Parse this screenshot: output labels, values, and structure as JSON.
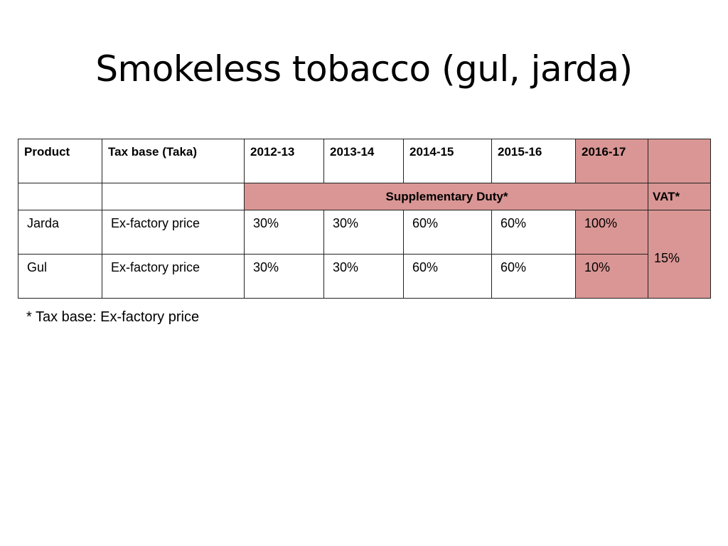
{
  "title": "Smokeless tobacco (gul, jarda)",
  "table": {
    "headers": [
      "Product",
      "Tax base (Taka)",
      "2012-13",
      "2013-14",
      "2014-15",
      "2015-16",
      "2016-17",
      ""
    ],
    "group_labels": {
      "supplementary_duty": "Supplementary Duty*",
      "vat": "VAT*"
    },
    "rows": [
      {
        "product": "Jarda",
        "tax_base": "Ex-factory price",
        "values": [
          "30%",
          "30%",
          "60%",
          "60%",
          "100%"
        ]
      },
      {
        "product": "Gul",
        "tax_base": "Ex-factory price",
        "values": [
          "30%",
          "30%",
          "60%",
          "60%",
          "10%"
        ]
      }
    ],
    "vat_value": "15%"
  },
  "footnote": "* Tax base: Ex-factory price",
  "colors": {
    "highlight": "#d99694",
    "border": "#222222"
  }
}
